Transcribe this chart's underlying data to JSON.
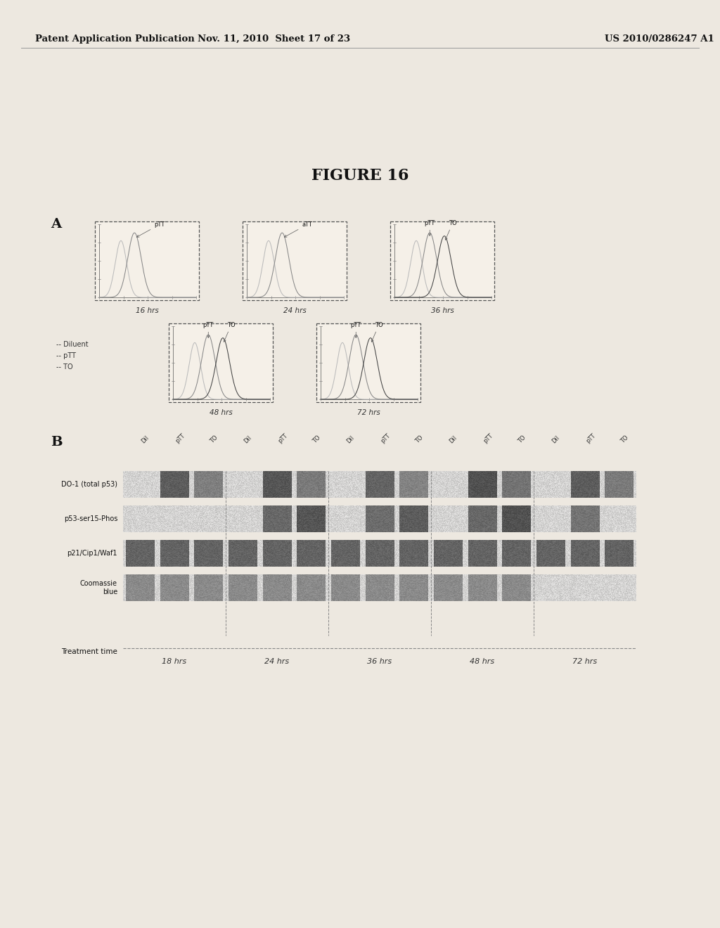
{
  "header_left": "Patent Application Publication",
  "header_middle": "Nov. 11, 2010  Sheet 17 of 23",
  "header_right": "US 2010/0286247 A1",
  "figure_title": "FIGURE 16",
  "section_A_label": "A",
  "section_B_label": "B",
  "top_row_labels": [
    "pTT",
    "aTT",
    "pTT and TO"
  ],
  "top_row_times": [
    "16 hrs",
    "24 hrs",
    "36 hrs"
  ],
  "bottom_row_labels": [
    "pTT   TO",
    "pTT   TO"
  ],
  "bottom_row_times": [
    "48 hrs",
    "72 hrs"
  ],
  "legend_items": [
    "-- Diluent",
    "-- pTT",
    "-- TO"
  ],
  "western_row_labels": [
    "DO-1 (total p53)",
    "p53-ser15-Phos",
    "p21/Cip1/Waf1",
    "Coomassie\nblue"
  ],
  "western_col_labels": [
    "Dil",
    "pTT",
    "TO",
    "Dil",
    "pTT",
    "TO",
    "Dil",
    "pTT",
    "TO",
    "Dil",
    "pTT",
    "TO",
    "Dil",
    "pTT",
    "TO"
  ],
  "treatment_times": [
    "18 hrs",
    "24 hrs",
    "36 hrs",
    "48 hrs",
    "72 hrs"
  ],
  "treatment_label": "Treatment time",
  "bg_color": "#ede8e0"
}
